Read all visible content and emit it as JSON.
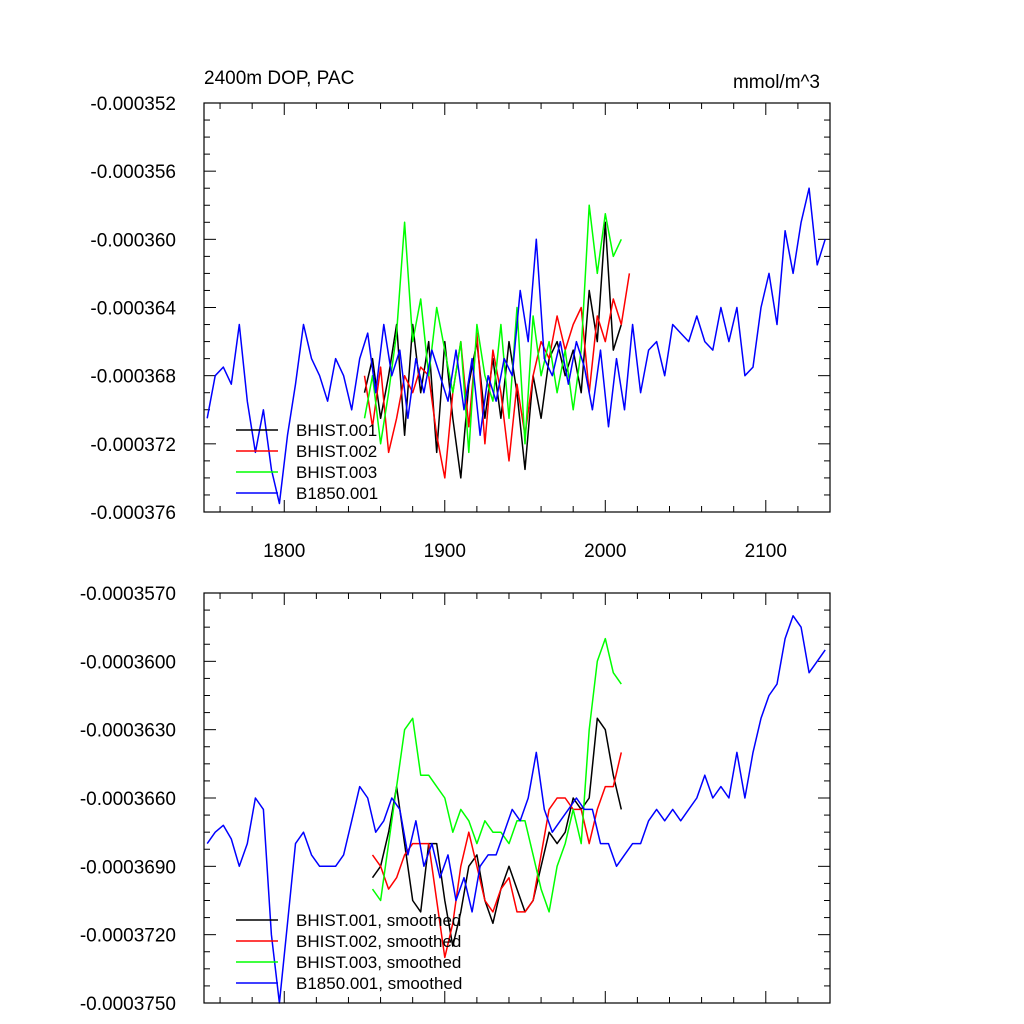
{
  "chart_data": [
    {
      "type": "line",
      "title": "2400m DOP, PAC",
      "units": "mmol/m^3",
      "xlim": [
        1750,
        2140
      ],
      "ylim": [
        -0.000376,
        -0.000352
      ],
      "x_ticks": [
        1800,
        1900,
        2000,
        2100
      ],
      "x_tick_labels": [
        "1800",
        "1900",
        "2000",
        "2100"
      ],
      "y_ticks": [
        -0.000376,
        -0.000372,
        -0.000368,
        -0.000364,
        -0.00036,
        -0.000356,
        -0.000352
      ],
      "y_tick_labels": [
        "-0.000376",
        "-0.000372",
        "-0.000368",
        "-0.000364",
        "-0.000360",
        "-0.000356",
        "-0.000352"
      ],
      "legend": "bottom-left",
      "series": [
        {
          "name": "BHIST.001",
          "color": "#000000",
          "x": [
            1850,
            1855,
            1860,
            1865,
            1870,
            1875,
            1880,
            1885,
            1890,
            1895,
            1900,
            1905,
            1910,
            1915,
            1920,
            1925,
            1930,
            1935,
            1940,
            1945,
            1950,
            1955,
            1960,
            1965,
            1970,
            1975,
            1980,
            1985,
            1990,
            1995,
            2000,
            2005,
            2010
          ],
          "y": [
            -0.000369,
            -0.000367,
            -0.0003705,
            -0.000368,
            -0.000365,
            -0.0003715,
            -0.000365,
            -0.000369,
            -0.000366,
            -0.0003725,
            -0.000366,
            -0.0003705,
            -0.000374,
            -0.0003685,
            -0.000366,
            -0.0003705,
            -0.000367,
            -0.0003705,
            -0.000366,
            -0.000369,
            -0.0003735,
            -0.000368,
            -0.0003705,
            -0.000367,
            -0.000366,
            -0.000368,
            -0.0003665,
            -0.000369,
            -0.000363,
            -0.000366,
            -0.000359,
            -0.0003665,
            -0.000365
          ]
        },
        {
          "name": "BHIST.002",
          "color": "#ff0000",
          "x": [
            1850,
            1855,
            1860,
            1865,
            1870,
            1875,
            1880,
            1885,
            1890,
            1895,
            1900,
            1905,
            1910,
            1915,
            1920,
            1925,
            1930,
            1935,
            1940,
            1945,
            1950,
            1955,
            1960,
            1965,
            1970,
            1975,
            1980,
            1985,
            1990,
            1995,
            2000,
            2005,
            2010,
            2015
          ],
          "y": [
            -0.000368,
            -0.000371,
            -0.0003675,
            -0.0003725,
            -0.0003705,
            -0.000368,
            -0.000369,
            -0.0003675,
            -0.000368,
            -0.0003715,
            -0.000374,
            -0.000369,
            -0.000366,
            -0.000371,
            -0.0003655,
            -0.000372,
            -0.0003665,
            -0.000369,
            -0.000373,
            -0.0003685,
            -0.0003715,
            -0.000368,
            -0.000366,
            -0.000367,
            -0.0003645,
            -0.0003665,
            -0.000365,
            -0.000364,
            -0.000369,
            -0.0003645,
            -0.000366,
            -0.0003635,
            -0.000365,
            -0.000362
          ]
        },
        {
          "name": "BHIST.003",
          "color": "#00ff00",
          "x": [
            1850,
            1855,
            1860,
            1865,
            1870,
            1875,
            1880,
            1885,
            1890,
            1895,
            1900,
            1905,
            1910,
            1915,
            1920,
            1925,
            1930,
            1935,
            1940,
            1945,
            1950,
            1955,
            1960,
            1965,
            1970,
            1975,
            1980,
            1985,
            1990,
            1995,
            2000,
            2005,
            2010
          ],
          "y": [
            -0.0003705,
            -0.000368,
            -0.000372,
            -0.000369,
            -0.0003655,
            -0.000359,
            -0.000366,
            -0.0003635,
            -0.000368,
            -0.000364,
            -0.0003665,
            -0.000369,
            -0.000366,
            -0.0003725,
            -0.000365,
            -0.000368,
            -0.0003695,
            -0.000365,
            -0.0003705,
            -0.000364,
            -0.000372,
            -0.0003645,
            -0.000368,
            -0.000366,
            -0.000369,
            -0.0003665,
            -0.00037,
            -0.0003665,
            -0.000358,
            -0.000362,
            -0.0003585,
            -0.000361,
            -0.00036
          ]
        },
        {
          "name": "B1850.001",
          "color": "#0000ff",
          "x": [
            1752,
            1757,
            1762,
            1767,
            1772,
            1777,
            1782,
            1787,
            1792,
            1797,
            1802,
            1807,
            1812,
            1817,
            1822,
            1827,
            1832,
            1837,
            1842,
            1847,
            1852,
            1857,
            1862,
            1867,
            1872,
            1877,
            1882,
            1887,
            1892,
            1897,
            1902,
            1907,
            1912,
            1917,
            1922,
            1927,
            1932,
            1937,
            1942,
            1947,
            1952,
            1957,
            1962,
            1967,
            1972,
            1977,
            1982,
            1987,
            1992,
            1997,
            2002,
            2007,
            2012,
            2017,
            2022,
            2027,
            2032,
            2037,
            2042,
            2047,
            2052,
            2057,
            2062,
            2067,
            2072,
            2077,
            2082,
            2087,
            2092,
            2097,
            2102,
            2107,
            2112,
            2117,
            2122,
            2127,
            2132,
            2137
          ],
          "y": [
            -0.0003705,
            -0.000368,
            -0.0003675,
            -0.0003685,
            -0.000365,
            -0.0003695,
            -0.0003725,
            -0.00037,
            -0.0003735,
            -0.0003755,
            -0.0003715,
            -0.0003685,
            -0.000365,
            -0.000367,
            -0.000368,
            -0.0003695,
            -0.000367,
            -0.000368,
            -0.00037,
            -0.000367,
            -0.0003655,
            -0.000369,
            -0.000365,
            -0.000368,
            -0.0003665,
            -0.0003705,
            -0.000367,
            -0.000369,
            -0.0003665,
            -0.000368,
            -0.0003695,
            -0.0003665,
            -0.00037,
            -0.000367,
            -0.0003715,
            -0.000368,
            -0.0003695,
            -0.000367,
            -0.000368,
            -0.000363,
            -0.000366,
            -0.00036,
            -0.000367,
            -0.000368,
            -0.000366,
            -0.0003685,
            -0.000366,
            -0.0003675,
            -0.00037,
            -0.0003665,
            -0.000371,
            -0.000367,
            -0.00037,
            -0.000365,
            -0.000369,
            -0.0003665,
            -0.000366,
            -0.000368,
            -0.000365,
            -0.0003655,
            -0.000366,
            -0.0003645,
            -0.000366,
            -0.0003665,
            -0.000364,
            -0.000366,
            -0.000364,
            -0.000368,
            -0.0003675,
            -0.000364,
            -0.000362,
            -0.000365,
            -0.0003595,
            -0.000362,
            -0.000359,
            -0.000357,
            -0.0003615,
            -0.00036
          ]
        }
      ]
    },
    {
      "type": "line",
      "xlim": [
        1750,
        2140
      ],
      "ylim": [
        -0.000375,
        -0.000357
      ],
      "x_ticks": [
        1800,
        1900,
        2000,
        2100
      ],
      "y_ticks": [
        -0.000375,
        -0.000372,
        -0.000369,
        -0.000366,
        -0.000363,
        -0.00036,
        -0.000357
      ],
      "y_tick_labels": [
        "-0.0003750",
        "-0.0003720",
        "-0.0003690",
        "-0.0003660",
        "-0.0003630",
        "-0.0003600",
        "-0.0003570"
      ],
      "legend": "bottom-left",
      "series": [
        {
          "name": "BHIST.001, smoothed",
          "color": "#000000",
          "x": [
            1855,
            1860,
            1865,
            1870,
            1875,
            1880,
            1885,
            1890,
            1895,
            1900,
            1905,
            1910,
            1915,
            1920,
            1925,
            1930,
            1935,
            1940,
            1945,
            1950,
            1955,
            1960,
            1965,
            1970,
            1975,
            1980,
            1985,
            1990,
            1995,
            2000,
            2005,
            2010
          ],
          "y": [
            -0.0003695,
            -0.000369,
            -0.0003675,
            -0.0003655,
            -0.000368,
            -0.0003705,
            -0.000371,
            -0.000368,
            -0.000368,
            -0.0003705,
            -0.0003725,
            -0.000371,
            -0.000369,
            -0.0003685,
            -0.0003705,
            -0.0003715,
            -0.00037,
            -0.000369,
            -0.00037,
            -0.000371,
            -0.0003705,
            -0.000369,
            -0.0003675,
            -0.000368,
            -0.0003675,
            -0.000366,
            -0.0003665,
            -0.000366,
            -0.0003625,
            -0.000363,
            -0.000365,
            -0.0003665
          ]
        },
        {
          "name": "BHIST.002, smoothed",
          "color": "#ff0000",
          "x": [
            1855,
            1860,
            1865,
            1870,
            1875,
            1880,
            1885,
            1890,
            1895,
            1900,
            1905,
            1910,
            1915,
            1920,
            1925,
            1930,
            1935,
            1940,
            1945,
            1950,
            1955,
            1960,
            1965,
            1970,
            1975,
            1980,
            1985,
            1990,
            1995,
            2000,
            2005,
            2010
          ],
          "y": [
            -0.0003685,
            -0.000369,
            -0.00037,
            -0.0003695,
            -0.0003685,
            -0.000368,
            -0.000368,
            -0.000368,
            -0.0003705,
            -0.000373,
            -0.0003715,
            -0.000369,
            -0.0003675,
            -0.000369,
            -0.0003705,
            -0.000371,
            -0.00037,
            -0.0003695,
            -0.000371,
            -0.000371,
            -0.0003705,
            -0.0003685,
            -0.0003665,
            -0.000366,
            -0.000366,
            -0.0003665,
            -0.0003665,
            -0.000368,
            -0.0003665,
            -0.0003655,
            -0.0003655,
            -0.000364
          ]
        },
        {
          "name": "BHIST.003, smoothed",
          "color": "#00ff00",
          "x": [
            1855,
            1860,
            1865,
            1870,
            1875,
            1880,
            1885,
            1890,
            1895,
            1900,
            1905,
            1910,
            1915,
            1920,
            1925,
            1930,
            1935,
            1940,
            1945,
            1950,
            1955,
            1960,
            1965,
            1970,
            1975,
            1980,
            1985,
            1990,
            1995,
            2000,
            2005,
            2010
          ],
          "y": [
            -0.00037,
            -0.0003705,
            -0.000368,
            -0.0003655,
            -0.000363,
            -0.0003625,
            -0.000365,
            -0.000365,
            -0.0003655,
            -0.000366,
            -0.0003675,
            -0.0003665,
            -0.000367,
            -0.000368,
            -0.000367,
            -0.0003675,
            -0.0003675,
            -0.000368,
            -0.000367,
            -0.000367,
            -0.0003685,
            -0.00037,
            -0.000371,
            -0.000369,
            -0.000368,
            -0.0003665,
            -0.000368,
            -0.000363,
            -0.00036,
            -0.000359,
            -0.0003605,
            -0.000361
          ]
        },
        {
          "name": "B1850.001, smoothed",
          "color": "#0000ff",
          "x": [
            1752,
            1757,
            1762,
            1767,
            1772,
            1777,
            1782,
            1787,
            1792,
            1797,
            1802,
            1807,
            1812,
            1817,
            1822,
            1827,
            1832,
            1837,
            1842,
            1847,
            1852,
            1857,
            1862,
            1867,
            1872,
            1877,
            1882,
            1887,
            1892,
            1897,
            1902,
            1907,
            1912,
            1917,
            1922,
            1927,
            1932,
            1937,
            1942,
            1947,
            1952,
            1957,
            1962,
            1967,
            1972,
            1977,
            1982,
            1987,
            1992,
            1997,
            2002,
            2007,
            2012,
            2017,
            2022,
            2027,
            2032,
            2037,
            2042,
            2047,
            2052,
            2057,
            2062,
            2067,
            2072,
            2077,
            2082,
            2087,
            2092,
            2097,
            2102,
            2107,
            2112,
            2117,
            2122,
            2127,
            2132,
            2137
          ],
          "y": [
            -0.000368,
            -0.0003675,
            -0.0003672,
            -0.0003678,
            -0.000369,
            -0.000368,
            -0.000366,
            -0.0003665,
            -0.000372,
            -0.000375,
            -0.0003715,
            -0.000368,
            -0.0003675,
            -0.0003685,
            -0.000369,
            -0.000369,
            -0.000369,
            -0.0003685,
            -0.000367,
            -0.0003655,
            -0.000366,
            -0.0003675,
            -0.000367,
            -0.000366,
            -0.0003665,
            -0.0003685,
            -0.000367,
            -0.000369,
            -0.000368,
            -0.0003695,
            -0.0003685,
            -0.0003705,
            -0.0003695,
            -0.000371,
            -0.000369,
            -0.0003685,
            -0.0003685,
            -0.0003675,
            -0.0003665,
            -0.000367,
            -0.000366,
            -0.000364,
            -0.0003665,
            -0.0003675,
            -0.000367,
            -0.0003665,
            -0.000366,
            -0.0003665,
            -0.0003665,
            -0.000368,
            -0.000368,
            -0.000369,
            -0.0003685,
            -0.000368,
            -0.000368,
            -0.000367,
            -0.0003665,
            -0.000367,
            -0.0003665,
            -0.000367,
            -0.0003665,
            -0.000366,
            -0.000365,
            -0.000366,
            -0.0003655,
            -0.000366,
            -0.000364,
            -0.000366,
            -0.000364,
            -0.0003625,
            -0.0003615,
            -0.000361,
            -0.000359,
            -0.000358,
            -0.0003585,
            -0.0003605,
            -0.00036,
            -0.0003595
          ]
        }
      ]
    }
  ]
}
